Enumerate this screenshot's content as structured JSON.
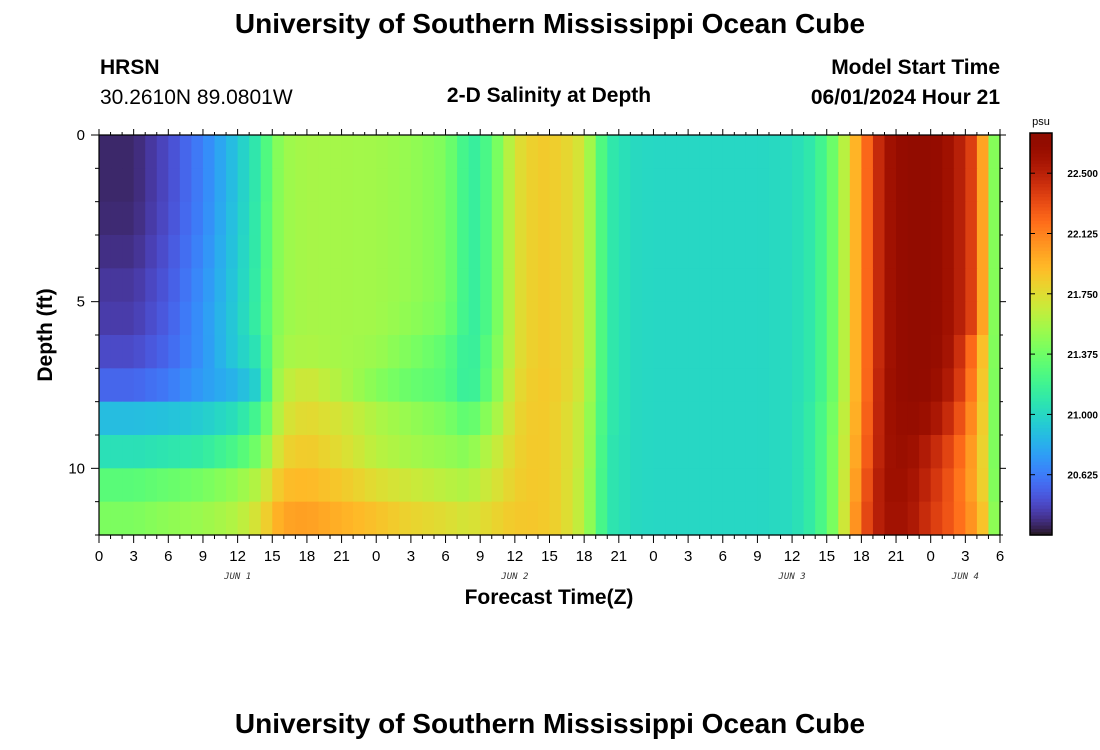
{
  "header": {
    "title": "University of Southern Mississippi Ocean Cube",
    "station": "HRSN",
    "coords": "30.2610N  89.0801W",
    "product": "2-D Salinity at Depth",
    "model_start_label": "Model Start Time",
    "model_start_value": "06/01/2024 Hour 21"
  },
  "footer": {
    "title": "University of Southern Mississippi Ocean Cube"
  },
  "chart_data": {
    "type": "heatmap",
    "xlabel": "Forecast Time(Z)",
    "ylabel": "Depth (ft)",
    "x_tick_labels": [
      "0",
      "3",
      "6",
      "9",
      "12",
      "15",
      "18",
      "21",
      "0",
      "3",
      "6",
      "9",
      "12",
      "15",
      "18",
      "21",
      "0",
      "3",
      "6",
      "9",
      "12",
      "15",
      "18",
      "21",
      "0",
      "3",
      "6"
    ],
    "x_range_hours": [
      0,
      78
    ],
    "day_labels": [
      {
        "text": "JUN 1",
        "hour": 12
      },
      {
        "text": "JUN 2",
        "hour": 36
      },
      {
        "text": "JUN 3",
        "hour": 60
      },
      {
        "text": "JUN 4",
        "hour": 75
      }
    ],
    "y_ticks": [
      0,
      5,
      10
    ],
    "y_tick_labels": [
      "0",
      "5",
      "10"
    ],
    "y_range_ft": [
      0,
      12
    ],
    "y_inverted": true,
    "colorbar": {
      "unit": "psu",
      "min": 20.25,
      "max": 22.75,
      "tick_values": [
        20.625,
        21.0,
        21.375,
        21.75,
        22.125,
        22.5
      ],
      "tick_labels": [
        "20.625",
        "21.000",
        "21.375",
        "21.750",
        "22.125",
        "22.500"
      ],
      "colormap": "turbo"
    },
    "time_step_hours": 1,
    "depth_levels_ft": [
      0.5,
      1.5,
      2.5,
      3.5,
      4.5,
      5.5,
      6.5,
      7.5,
      8.5,
      9.5,
      10.5,
      11.5
    ],
    "anchor_hours": [
      0,
      3,
      6,
      9,
      12,
      14,
      15,
      16,
      18,
      21,
      24,
      27,
      30,
      32,
      33,
      35,
      36,
      38,
      40,
      42,
      44,
      46,
      48,
      51,
      54,
      57,
      60,
      62,
      64,
      66,
      68,
      70,
      72,
      74,
      76,
      77,
      78
    ],
    "anchor_values": [
      [
        20.32,
        20.32,
        20.45,
        20.65,
        20.92,
        21.15,
        21.38,
        21.52,
        21.56,
        21.55,
        21.54,
        21.5,
        21.42,
        21.15,
        21.15,
        21.5,
        21.72,
        21.85,
        21.82,
        21.68,
        21.12,
        21.02,
        21.0,
        21.0,
        21.0,
        21.0,
        21.02,
        21.12,
        21.45,
        22.1,
        22.58,
        22.7,
        22.7,
        22.58,
        22.3,
        21.7,
        21.2
      ],
      [
        20.32,
        20.32,
        20.45,
        20.65,
        20.92,
        21.15,
        21.38,
        21.52,
        21.56,
        21.55,
        21.54,
        21.5,
        21.42,
        21.15,
        21.15,
        21.5,
        21.72,
        21.85,
        21.82,
        21.68,
        21.12,
        21.02,
        21.0,
        21.0,
        21.0,
        21.0,
        21.02,
        21.12,
        21.45,
        22.1,
        22.58,
        22.7,
        22.7,
        22.58,
        22.3,
        21.7,
        21.2
      ],
      [
        20.33,
        20.33,
        20.46,
        20.66,
        20.93,
        21.16,
        21.39,
        21.52,
        21.56,
        21.55,
        21.54,
        21.5,
        21.42,
        21.15,
        21.15,
        21.5,
        21.72,
        21.85,
        21.82,
        21.68,
        21.12,
        21.02,
        21.0,
        21.0,
        21.0,
        21.0,
        21.02,
        21.12,
        21.45,
        22.1,
        22.58,
        22.7,
        22.7,
        22.58,
        22.3,
        21.7,
        21.2
      ],
      [
        20.35,
        20.35,
        20.48,
        20.68,
        20.94,
        21.16,
        21.39,
        21.52,
        21.56,
        21.55,
        21.54,
        21.5,
        21.42,
        21.15,
        21.15,
        21.5,
        21.72,
        21.85,
        21.82,
        21.68,
        21.12,
        21.02,
        21.0,
        21.0,
        21.0,
        21.0,
        21.02,
        21.12,
        21.45,
        22.1,
        22.58,
        22.7,
        22.7,
        22.58,
        22.3,
        21.7,
        21.2
      ],
      [
        20.38,
        20.38,
        20.5,
        20.7,
        20.95,
        21.17,
        21.4,
        21.52,
        21.56,
        21.55,
        21.54,
        21.5,
        21.42,
        21.15,
        21.15,
        21.5,
        21.72,
        21.85,
        21.82,
        21.68,
        21.12,
        21.02,
        21.0,
        21.0,
        21.0,
        21.0,
        21.02,
        21.12,
        21.45,
        22.1,
        22.58,
        22.7,
        22.7,
        22.58,
        22.3,
        21.7,
        21.2
      ],
      [
        20.4,
        20.4,
        20.52,
        20.72,
        20.96,
        21.18,
        21.4,
        21.52,
        21.56,
        21.55,
        21.54,
        21.48,
        21.4,
        21.15,
        21.15,
        21.5,
        21.72,
        21.85,
        21.82,
        21.68,
        21.12,
        21.02,
        21.0,
        21.0,
        21.0,
        21.0,
        21.02,
        21.12,
        21.45,
        22.1,
        22.58,
        22.7,
        22.7,
        22.58,
        22.3,
        21.7,
        21.2
      ],
      [
        20.45,
        20.45,
        20.55,
        20.72,
        20.95,
        21.1,
        21.42,
        21.55,
        21.58,
        21.55,
        21.52,
        21.42,
        21.32,
        21.12,
        21.2,
        21.52,
        21.72,
        21.85,
        21.82,
        21.68,
        21.12,
        21.02,
        21.0,
        21.0,
        21.0,
        21.0,
        21.02,
        21.12,
        21.45,
        22.1,
        22.58,
        22.7,
        22.7,
        22.55,
        22.1,
        21.68,
        21.2
      ],
      [
        20.55,
        20.55,
        20.62,
        20.75,
        20.85,
        21.0,
        21.45,
        21.62,
        21.7,
        21.58,
        21.45,
        21.35,
        21.3,
        21.12,
        21.22,
        21.55,
        21.75,
        21.86,
        21.82,
        21.66,
        21.12,
        21.02,
        21.0,
        21.0,
        21.0,
        21.0,
        21.02,
        21.12,
        21.45,
        22.1,
        22.6,
        22.7,
        22.68,
        22.5,
        22.05,
        21.66,
        21.2
      ],
      [
        20.88,
        20.88,
        20.9,
        20.95,
        21.05,
        21.25,
        21.5,
        21.7,
        21.78,
        21.7,
        21.58,
        21.5,
        21.42,
        21.3,
        21.4,
        21.62,
        21.78,
        21.86,
        21.8,
        21.62,
        21.12,
        21.02,
        21.0,
        21.0,
        21.0,
        21.0,
        21.02,
        21.15,
        21.48,
        22.12,
        22.6,
        22.68,
        22.62,
        22.4,
        22.0,
        21.66,
        21.2
      ],
      [
        21.05,
        21.05,
        21.08,
        21.12,
        21.25,
        21.42,
        21.62,
        21.8,
        21.85,
        21.75,
        21.62,
        21.55,
        21.5,
        21.45,
        21.55,
        21.7,
        21.8,
        21.86,
        21.8,
        21.62,
        21.1,
        21.02,
        21.0,
        21.0,
        21.0,
        21.0,
        21.02,
        21.15,
        21.5,
        22.15,
        22.6,
        22.65,
        22.5,
        22.3,
        21.95,
        21.66,
        21.2
      ],
      [
        21.3,
        21.3,
        21.35,
        21.4,
        21.5,
        21.62,
        21.78,
        21.9,
        21.92,
        21.85,
        21.75,
        21.68,
        21.62,
        21.58,
        21.65,
        21.75,
        21.82,
        21.86,
        21.8,
        21.6,
        21.1,
        21.02,
        21.0,
        21.0,
        21.0,
        21.0,
        21.02,
        21.15,
        21.5,
        22.2,
        22.62,
        22.62,
        22.45,
        22.25,
        21.95,
        21.68,
        21.2
      ],
      [
        21.42,
        21.42,
        21.48,
        21.52,
        21.6,
        21.75,
        21.9,
        22.0,
        22.02,
        21.95,
        21.88,
        21.8,
        21.75,
        21.7,
        21.75,
        21.82,
        21.85,
        21.86,
        21.8,
        21.6,
        21.1,
        21.02,
        21.0,
        21.0,
        21.0,
        21.0,
        21.02,
        21.15,
        21.5,
        22.25,
        22.6,
        22.6,
        22.4,
        22.25,
        22.0,
        21.75,
        21.2
      ]
    ]
  }
}
